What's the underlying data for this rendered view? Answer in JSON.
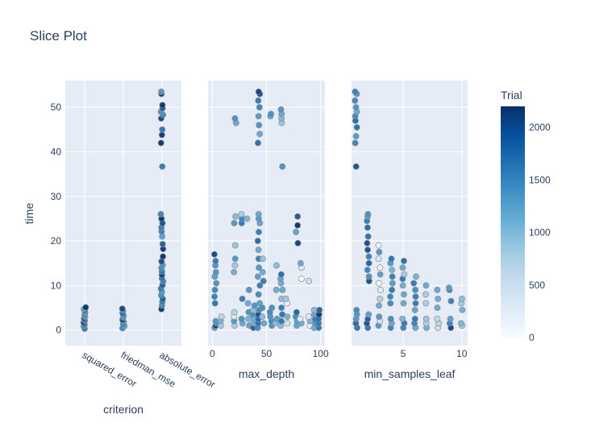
{
  "chart_data": {
    "type": "scatter",
    "title": "Slice Plot",
    "ylabel": "time",
    "ylim": [
      -3.5,
      56
    ],
    "y_ticks": [
      "0",
      "10",
      "20",
      "30",
      "40",
      "50"
    ],
    "grid": true,
    "point_colors": [
      "#f7fbff",
      "#c6dbef",
      "#6baed6",
      "#4292c6",
      "#2171b5",
      "#08306b"
    ],
    "panels": [
      {
        "xlabel": "criterion",
        "x_type": "category",
        "categories": [
          "squared_error",
          "friedman_mse",
          "absolute_error"
        ],
        "points": [
          {
            "x": "squared_error",
            "ys": [
              0.3,
              0.8,
              1.2,
              1.7,
              2.1,
              2.6,
              3.0,
              3.4,
              3.9,
              4.3,
              4.7,
              5.1
            ],
            "t": 0.75
          },
          {
            "x": "friedman_mse",
            "ys": [
              0.4,
              0.9,
              1.4,
              1.8,
              2.3,
              2.8,
              3.3,
              3.8,
              4.3,
              4.8
            ],
            "t": 0.7
          },
          {
            "x": "absolute_error",
            "ys": [
              4.7,
              5.5,
              6.3,
              7.0,
              7.8,
              8.6,
              9.3,
              10.1,
              10.9,
              11.6,
              12.4,
              13.1,
              13.9,
              14.6,
              15.4,
              16.5,
              18.2,
              19.3,
              21.0,
              22.1,
              23.0,
              24.0,
              25.0,
              26.0,
              36.7,
              42.0,
              43.8,
              45.0,
              47.5,
              48.3,
              49.0,
              49.8,
              50.5,
              53.0,
              53.5
            ],
            "t": 0.78
          }
        ]
      },
      {
        "xlabel": "max_depth",
        "x_type": "linear",
        "xlim": [
          -4,
          104
        ],
        "x_ticks": [
          0,
          50,
          100
        ],
        "points": [
          {
            "x": 3,
            "ys": [
              0.5,
              1.0,
              1.5,
              2.0,
              6.0,
              7.5,
              9.0,
              10.5,
              12.0,
              13.0,
              14.5,
              15.5,
              17.0
            ],
            "t": 0.8
          },
          {
            "x": 8,
            "ys": [
              1.0,
              2.0,
              3.0
            ],
            "t": 0.15
          },
          {
            "x": 21,
            "ys": [
              1.0,
              2.0,
              3.0,
              4.0,
              13.0,
              14.5,
              16.0,
              19.0,
              24.0,
              25.5,
              46.5,
              47.5
            ],
            "t": 0.35
          },
          {
            "x": 27,
            "ys": [
              1.5,
              2.5,
              7.0,
              24.0,
              25.0,
              26.0
            ],
            "t": 0.5
          },
          {
            "x": 33,
            "ys": [
              1.0,
              2.5,
              4.0,
              6.0,
              9.0,
              25.0
            ],
            "t": 0.45
          },
          {
            "x": 38,
            "ys": [
              0.5,
              1.5,
              2.5,
              3.5,
              4.5,
              5.5
            ],
            "t": 0.6
          },
          {
            "x": 43,
            "ys": [
              0.5,
              1.5,
              2.5,
              3.5,
              4.5,
              6.0,
              8.0,
              10.0,
              12.0,
              14.0,
              16.0,
              18.0,
              20.0,
              22.0,
              24.0,
              25.0,
              26.0,
              42.0,
              44.0,
              46.0,
              48.0,
              50.0,
              51.5,
              53.0,
              53.5
            ],
            "t": 0.7
          },
          {
            "x": 47,
            "ys": [
              1.5,
              3.0,
              5.0,
              11.0,
              13.0,
              16.0
            ],
            "t": 0.5
          },
          {
            "x": 54,
            "ys": [
              1.0,
              2.0,
              3.0,
              4.0,
              5.0,
              48.0,
              48.5
            ],
            "t": 0.55
          },
          {
            "x": 59,
            "ys": [
              1.5,
              2.5,
              9.0,
              14.5
            ],
            "t": 0.4
          },
          {
            "x": 64,
            "ys": [
              1.0,
              2.0,
              3.5,
              5.0,
              7.0,
              9.0,
              10.5,
              11.5,
              12.5,
              36.7,
              46.5,
              47.5,
              48.5,
              49.5
            ],
            "t": 0.55
          },
          {
            "x": 69,
            "ys": [
              1.5,
              3.0,
              6.0,
              7.0
            ],
            "t": 0.3
          },
          {
            "x": 78,
            "ys": [
              1.0,
              2.0,
              3.0,
              4.0,
              19.5,
              22.0,
              23.5,
              25.5
            ],
            "t": 0.75
          },
          {
            "x": 82,
            "ys": [
              1.5,
              2.5,
              11.5,
              14.0,
              15.0
            ],
            "t": 0.2
          },
          {
            "x": 90,
            "ys": [
              1.0,
              2.0,
              3.0,
              11.0
            ],
            "t": 0.25
          },
          {
            "x": 95,
            "ys": [
              0.5,
              1.5,
              2.5,
              3.5,
              4.5
            ],
            "t": 0.55
          },
          {
            "x": 99,
            "ys": [
              0.5,
              1.5,
              2.5,
              3.5,
              4.5
            ],
            "t": 0.85
          }
        ]
      },
      {
        "xlabel": "min_samples_leaf",
        "x_type": "linear",
        "xlim": [
          0.6,
          10.5
        ],
        "x_ticks": [
          5,
          10
        ],
        "points": [
          {
            "x": 1,
            "ys": [
              0.5,
              1.5,
              2.5,
              3.5,
              4.5,
              36.7,
              42.0,
              43.5,
              45.5,
              47.0,
              48.0,
              49.0,
              50.0,
              51.5,
              53.0,
              53.5
            ],
            "t": 0.7
          },
          {
            "x": 2,
            "ys": [
              0.5,
              1.5,
              2.5,
              3.5,
              11.0,
              12.0,
              13.5,
              15.0,
              16.5,
              18.0,
              19.5,
              21.0,
              23.0,
              24.5,
              25.5,
              26.0
            ],
            "t": 0.75
          },
          {
            "x": 3,
            "ys": [
              1.0,
              2.0,
              3.0,
              5.5,
              7.0,
              9.0,
              10.5,
              12.5,
              14.0,
              16.0,
              17.5,
              19.0
            ],
            "t": 0.3
          },
          {
            "x": 4,
            "ys": [
              0.5,
              1.5,
              2.5,
              6.0,
              7.5,
              9.0,
              10.5,
              12.0,
              13.5,
              15.0,
              16.0
            ],
            "t": 0.65
          },
          {
            "x": 5,
            "ys": [
              0.5,
              1.5,
              2.5,
              6.0,
              8.0,
              10.0,
              11.5,
              12.5,
              14.0,
              15.5
            ],
            "t": 0.55
          },
          {
            "x": 6,
            "ys": [
              0.5,
              1.5,
              2.5,
              4.5,
              6.0,
              7.5,
              9.0,
              10.5,
              12.0
            ],
            "t": 0.6
          },
          {
            "x": 7,
            "ys": [
              0.5,
              1.5,
              2.5,
              6.0,
              8.0,
              10.0
            ],
            "t": 0.45
          },
          {
            "x": 8,
            "ys": [
              0.5,
              1.5,
              2.5,
              5.0,
              7.0,
              9.0
            ],
            "t": 0.4
          },
          {
            "x": 9,
            "ys": [
              0.5,
              1.5,
              2.5,
              6.5,
              9.0,
              9.5
            ],
            "t": 0.7
          },
          {
            "x": 10,
            "ys": [
              1.0,
              1.5,
              4.5,
              6.0,
              7.0
            ],
            "t": 0.2
          }
        ]
      }
    ],
    "colorbar": {
      "title": "Trial",
      "range": [
        0,
        2200
      ],
      "ticks": [
        "0",
        "500",
        "1000",
        "1500",
        "2000"
      ],
      "colors": [
        "#f7fbff",
        "#deebf7",
        "#c6dbef",
        "#9ecae1",
        "#6baed6",
        "#4292c6",
        "#2171b5",
        "#08519c",
        "#08306b"
      ]
    }
  }
}
